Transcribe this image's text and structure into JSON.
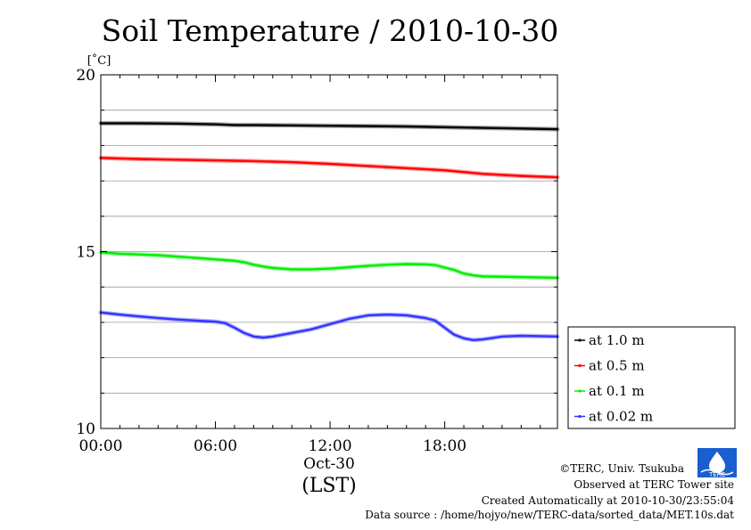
{
  "chart_data": {
    "type": "line",
    "title": "Soil Temperature / 2010-10-30",
    "ylabel": "[˚C]",
    "xlabel": "(LST)",
    "x_date_label": "Oct-30",
    "ylim": [
      10,
      20
    ],
    "y_ticks": [
      "10",
      "15",
      "20"
    ],
    "y_minor_step": 1,
    "x_ticks": [
      {
        "hour": 0,
        "label": "00:00"
      },
      {
        "hour": 6,
        "label": "06:00"
      },
      {
        "hour": 12,
        "label": "12:00"
      },
      {
        "hour": 18,
        "label": "18:00"
      }
    ],
    "xlim_hours": [
      0,
      23.9
    ],
    "grid": true,
    "legend_position": "bottom-right outside",
    "series": [
      {
        "name": "at 1.0 m",
        "color": "#000000",
        "points": [
          [
            0,
            18.63
          ],
          [
            2,
            18.63
          ],
          [
            4,
            18.62
          ],
          [
            6,
            18.6
          ],
          [
            7,
            18.58
          ],
          [
            8,
            18.58
          ],
          [
            10,
            18.57
          ],
          [
            12,
            18.56
          ],
          [
            14,
            18.55
          ],
          [
            16,
            18.54
          ],
          [
            18,
            18.52
          ],
          [
            20,
            18.5
          ],
          [
            22,
            18.48
          ],
          [
            23.9,
            18.46
          ]
        ]
      },
      {
        "name": "at 0.5 m",
        "color": "#ff0000",
        "points": [
          [
            0,
            17.65
          ],
          [
            2,
            17.62
          ],
          [
            4,
            17.6
          ],
          [
            6,
            17.58
          ],
          [
            8,
            17.56
          ],
          [
            10,
            17.53
          ],
          [
            12,
            17.48
          ],
          [
            14,
            17.42
          ],
          [
            16,
            17.36
          ],
          [
            18,
            17.3
          ],
          [
            19,
            17.25
          ],
          [
            20,
            17.2
          ],
          [
            22,
            17.14
          ],
          [
            23.9,
            17.1
          ]
        ]
      },
      {
        "name": "at 0.1 m",
        "color": "#00ee00",
        "points": [
          [
            0,
            14.98
          ],
          [
            1,
            14.94
          ],
          [
            2,
            14.92
          ],
          [
            3,
            14.9
          ],
          [
            4,
            14.86
          ],
          [
            5,
            14.82
          ],
          [
            6,
            14.78
          ],
          [
            7,
            14.74
          ],
          [
            7.5,
            14.7
          ],
          [
            8,
            14.63
          ],
          [
            8.5,
            14.58
          ],
          [
            9,
            14.54
          ],
          [
            10,
            14.5
          ],
          [
            11,
            14.5
          ],
          [
            12,
            14.52
          ],
          [
            13,
            14.56
          ],
          [
            14,
            14.6
          ],
          [
            15,
            14.63
          ],
          [
            16,
            14.65
          ],
          [
            17,
            14.64
          ],
          [
            17.5,
            14.62
          ],
          [
            18,
            14.55
          ],
          [
            18.5,
            14.48
          ],
          [
            19,
            14.38
          ],
          [
            19.5,
            14.33
          ],
          [
            20,
            14.3
          ],
          [
            22,
            14.28
          ],
          [
            23.9,
            14.26
          ]
        ]
      },
      {
        "name": "at 0.02 m",
        "color": "#3333ff",
        "points": [
          [
            0,
            13.28
          ],
          [
            1,
            13.22
          ],
          [
            2,
            13.17
          ],
          [
            3,
            13.12
          ],
          [
            4,
            13.08
          ],
          [
            5,
            13.05
          ],
          [
            6,
            13.02
          ],
          [
            6.5,
            12.98
          ],
          [
            7,
            12.85
          ],
          [
            7.5,
            12.7
          ],
          [
            8,
            12.6
          ],
          [
            8.5,
            12.57
          ],
          [
            9,
            12.6
          ],
          [
            10,
            12.7
          ],
          [
            11,
            12.8
          ],
          [
            12,
            12.95
          ],
          [
            13,
            13.1
          ],
          [
            14,
            13.2
          ],
          [
            15,
            13.22
          ],
          [
            16,
            13.2
          ],
          [
            17,
            13.12
          ],
          [
            17.5,
            13.05
          ],
          [
            18,
            12.85
          ],
          [
            18.5,
            12.65
          ],
          [
            19,
            12.55
          ],
          [
            19.5,
            12.5
          ],
          [
            20,
            12.52
          ],
          [
            21,
            12.6
          ],
          [
            22,
            12.62
          ],
          [
            23.9,
            12.6
          ]
        ]
      }
    ]
  },
  "footer": {
    "copyright": "©TERC, Univ. Tsukuba",
    "observed": "Observed at TERC Tower site",
    "created": "Created Automatically at 2010-10-30/23:55:04",
    "source": "Data source : /home/hojyo/new/TERC-data/sorted_data/MET.10s.dat",
    "logo_text": "TERC"
  },
  "logo_color": "#1a5fd0"
}
